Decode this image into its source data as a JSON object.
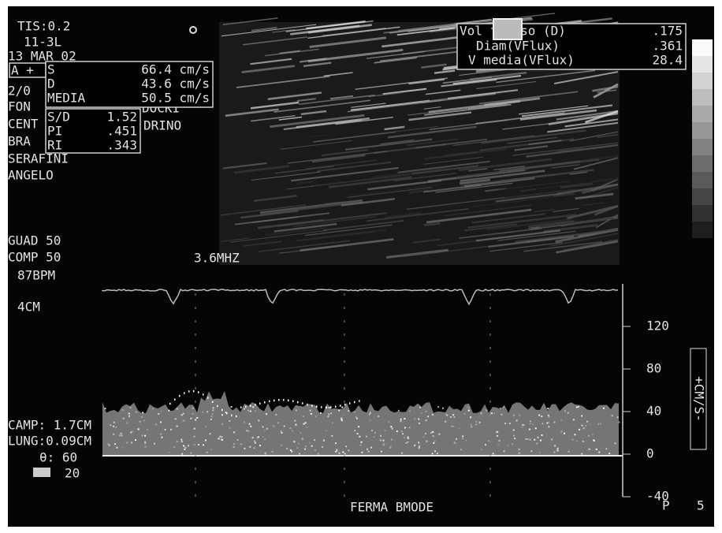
{
  "header": {
    "tis": "TIS:0.2",
    "probe": "11-3L",
    "date": "13 MAR 02",
    "time": "2/0"
  },
  "measurements": {
    "marker": "A +",
    "rows": [
      [
        "S",
        "66.4 cm/s"
      ],
      [
        "D",
        "43.6 cm/s"
      ],
      [
        "MEDIA",
        "50.5 cm/s"
      ]
    ]
  },
  "indices": [
    [
      "S/D",
      "1.52"
    ],
    [
      "PI",
      ".451"
    ],
    [
      "RI",
      ".343"
    ]
  ],
  "patient": {
    "lines": [
      "FON",
      "CENT",
      "BRA",
      "SERAFINI",
      "ANGELO"
    ],
    "hidden": [
      "DOCKI",
      "DRINO"
    ]
  },
  "flow": [
    [
      "Vol flusso (D)",
      ".175"
    ],
    [
      "Diam(VFlux)",
      ".361"
    ],
    [
      "V media(VFlux)",
      "28.4"
    ]
  ],
  "settings": [
    "GUAD 50",
    "COMP 50",
    "87BPM"
  ],
  "frequency": "3.6MHZ",
  "depth": "4CM",
  "scale": {
    "ticks": [
      "120",
      "80",
      "40",
      "0",
      "-40"
    ],
    "unit": "+CM/S-"
  },
  "gate": [
    "CAMP: 1.7CM",
    "LUNG:0.09CM"
  ],
  "angle": "θ: 60",
  "filter": "20",
  "status": "FERMA BMODE",
  "page": [
    "P",
    "5"
  ]
}
